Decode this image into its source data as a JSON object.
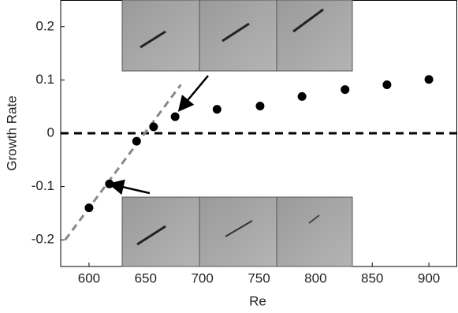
{
  "chart_data": {
    "type": "scatter",
    "xlabel": "Re",
    "ylabel": "Growth Rate",
    "xlim": [
      575,
      925
    ],
    "ylim": [
      -0.25,
      0.25
    ],
    "xticks": [
      600,
      650,
      700,
      750,
      800,
      850,
      900
    ],
    "yticks": [
      -0.2,
      -0.1,
      0,
      0.1,
      0.2
    ],
    "series": [
      {
        "color": "#000000",
        "x": [
          600,
          618,
          642,
          657,
          676,
          713,
          751,
          788,
          826,
          863,
          900
        ],
        "y": [
          -0.14,
          -0.095,
          -0.015,
          0.012,
          0.031,
          0.045,
          0.051,
          0.069,
          0.082,
          0.091,
          0.101
        ]
      }
    ],
    "fit_line": {
      "color": "#888888",
      "x": [
        579,
        681
      ],
      "y": [
        -0.2,
        0.091
      ]
    },
    "reference_line": {
      "y": 0,
      "color": "#000000"
    }
  }
}
